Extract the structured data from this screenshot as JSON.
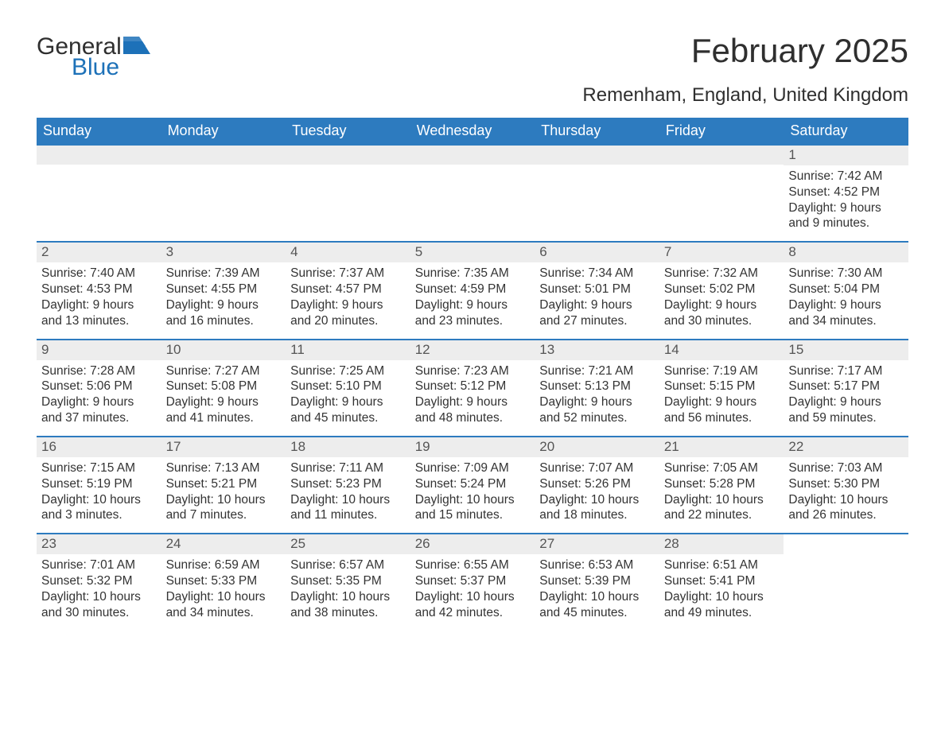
{
  "logo": {
    "word1": "General",
    "word2": "Blue",
    "icon_color": "#1d71b8",
    "text_color_dark": "#2f2f2f"
  },
  "header": {
    "month_title": "February 2025",
    "location": "Remenham, England, United Kingdom"
  },
  "colors": {
    "header_bar": "#2d7bbf",
    "header_text": "#ffffff",
    "daynum_bg": "#ededed",
    "body_text": "#333333",
    "rule": "#2d7bbf",
    "page_bg": "#ffffff"
  },
  "calendar": {
    "type": "table",
    "weekdays": [
      "Sunday",
      "Monday",
      "Tuesday",
      "Wednesday",
      "Thursday",
      "Friday",
      "Saturday"
    ],
    "first_day_column": 6,
    "days": [
      {
        "n": "1",
        "sunrise": "Sunrise: 7:42 AM",
        "sunset": "Sunset: 4:52 PM",
        "daylight": "Daylight: 9 hours and 9 minutes."
      },
      {
        "n": "2",
        "sunrise": "Sunrise: 7:40 AM",
        "sunset": "Sunset: 4:53 PM",
        "daylight": "Daylight: 9 hours and 13 minutes."
      },
      {
        "n": "3",
        "sunrise": "Sunrise: 7:39 AM",
        "sunset": "Sunset: 4:55 PM",
        "daylight": "Daylight: 9 hours and 16 minutes."
      },
      {
        "n": "4",
        "sunrise": "Sunrise: 7:37 AM",
        "sunset": "Sunset: 4:57 PM",
        "daylight": "Daylight: 9 hours and 20 minutes."
      },
      {
        "n": "5",
        "sunrise": "Sunrise: 7:35 AM",
        "sunset": "Sunset: 4:59 PM",
        "daylight": "Daylight: 9 hours and 23 minutes."
      },
      {
        "n": "6",
        "sunrise": "Sunrise: 7:34 AM",
        "sunset": "Sunset: 5:01 PM",
        "daylight": "Daylight: 9 hours and 27 minutes."
      },
      {
        "n": "7",
        "sunrise": "Sunrise: 7:32 AM",
        "sunset": "Sunset: 5:02 PM",
        "daylight": "Daylight: 9 hours and 30 minutes."
      },
      {
        "n": "8",
        "sunrise": "Sunrise: 7:30 AM",
        "sunset": "Sunset: 5:04 PM",
        "daylight": "Daylight: 9 hours and 34 minutes."
      },
      {
        "n": "9",
        "sunrise": "Sunrise: 7:28 AM",
        "sunset": "Sunset: 5:06 PM",
        "daylight": "Daylight: 9 hours and 37 minutes."
      },
      {
        "n": "10",
        "sunrise": "Sunrise: 7:27 AM",
        "sunset": "Sunset: 5:08 PM",
        "daylight": "Daylight: 9 hours and 41 minutes."
      },
      {
        "n": "11",
        "sunrise": "Sunrise: 7:25 AM",
        "sunset": "Sunset: 5:10 PM",
        "daylight": "Daylight: 9 hours and 45 minutes."
      },
      {
        "n": "12",
        "sunrise": "Sunrise: 7:23 AM",
        "sunset": "Sunset: 5:12 PM",
        "daylight": "Daylight: 9 hours and 48 minutes."
      },
      {
        "n": "13",
        "sunrise": "Sunrise: 7:21 AM",
        "sunset": "Sunset: 5:13 PM",
        "daylight": "Daylight: 9 hours and 52 minutes."
      },
      {
        "n": "14",
        "sunrise": "Sunrise: 7:19 AM",
        "sunset": "Sunset: 5:15 PM",
        "daylight": "Daylight: 9 hours and 56 minutes."
      },
      {
        "n": "15",
        "sunrise": "Sunrise: 7:17 AM",
        "sunset": "Sunset: 5:17 PM",
        "daylight": "Daylight: 9 hours and 59 minutes."
      },
      {
        "n": "16",
        "sunrise": "Sunrise: 7:15 AM",
        "sunset": "Sunset: 5:19 PM",
        "daylight": "Daylight: 10 hours and 3 minutes."
      },
      {
        "n": "17",
        "sunrise": "Sunrise: 7:13 AM",
        "sunset": "Sunset: 5:21 PM",
        "daylight": "Daylight: 10 hours and 7 minutes."
      },
      {
        "n": "18",
        "sunrise": "Sunrise: 7:11 AM",
        "sunset": "Sunset: 5:23 PM",
        "daylight": "Daylight: 10 hours and 11 minutes."
      },
      {
        "n": "19",
        "sunrise": "Sunrise: 7:09 AM",
        "sunset": "Sunset: 5:24 PM",
        "daylight": "Daylight: 10 hours and 15 minutes."
      },
      {
        "n": "20",
        "sunrise": "Sunrise: 7:07 AM",
        "sunset": "Sunset: 5:26 PM",
        "daylight": "Daylight: 10 hours and 18 minutes."
      },
      {
        "n": "21",
        "sunrise": "Sunrise: 7:05 AM",
        "sunset": "Sunset: 5:28 PM",
        "daylight": "Daylight: 10 hours and 22 minutes."
      },
      {
        "n": "22",
        "sunrise": "Sunrise: 7:03 AM",
        "sunset": "Sunset: 5:30 PM",
        "daylight": "Daylight: 10 hours and 26 minutes."
      },
      {
        "n": "23",
        "sunrise": "Sunrise: 7:01 AM",
        "sunset": "Sunset: 5:32 PM",
        "daylight": "Daylight: 10 hours and 30 minutes."
      },
      {
        "n": "24",
        "sunrise": "Sunrise: 6:59 AM",
        "sunset": "Sunset: 5:33 PM",
        "daylight": "Daylight: 10 hours and 34 minutes."
      },
      {
        "n": "25",
        "sunrise": "Sunrise: 6:57 AM",
        "sunset": "Sunset: 5:35 PM",
        "daylight": "Daylight: 10 hours and 38 minutes."
      },
      {
        "n": "26",
        "sunrise": "Sunrise: 6:55 AM",
        "sunset": "Sunset: 5:37 PM",
        "daylight": "Daylight: 10 hours and 42 minutes."
      },
      {
        "n": "27",
        "sunrise": "Sunrise: 6:53 AM",
        "sunset": "Sunset: 5:39 PM",
        "daylight": "Daylight: 10 hours and 45 minutes."
      },
      {
        "n": "28",
        "sunrise": "Sunrise: 6:51 AM",
        "sunset": "Sunset: 5:41 PM",
        "daylight": "Daylight: 10 hours and 49 minutes."
      }
    ]
  }
}
